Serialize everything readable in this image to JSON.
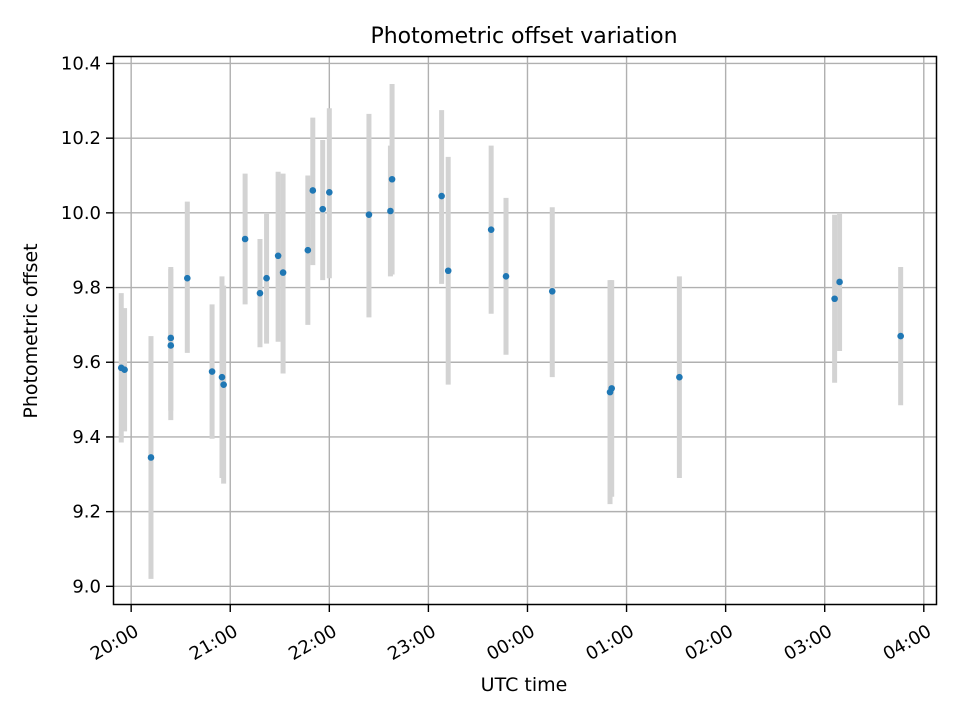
{
  "chart_data": {
    "type": "scatter",
    "title": "Photometric offset variation",
    "xlabel": "UTC time",
    "ylabel": "Photometric offset",
    "x_unit": "UTC time (hh:mm)",
    "x_range": [
      "19:49",
      "04:08"
    ],
    "ylim": [
      8.95,
      10.42
    ],
    "grid": true,
    "x_ticks": [
      "20:00",
      "21:00",
      "22:00",
      "23:00",
      "00:00",
      "01:00",
      "02:00",
      "03:00",
      "04:00"
    ],
    "y_ticks": [
      "9.0",
      "9.2",
      "9.4",
      "9.6",
      "9.8",
      "10.0",
      "10.2",
      "10.4"
    ],
    "point_color": "#1f77b4",
    "errorbar_color": "#d3d3d3",
    "points": [
      {
        "x": "19:54",
        "y": 9.585,
        "low": 9.385,
        "high": 9.785
      },
      {
        "x": "19:56",
        "y": 9.58,
        "low": 9.415,
        "high": 9.745
      },
      {
        "x": "20:12",
        "y": 9.345,
        "low": 9.02,
        "high": 9.67
      },
      {
        "x": "20:24",
        "y": 9.645,
        "low": 9.445,
        "high": 9.85
      },
      {
        "x": "20:24",
        "y": 9.665,
        "low": 9.47,
        "high": 9.855
      },
      {
        "x": "20:34",
        "y": 9.825,
        "low": 9.625,
        "high": 10.03
      },
      {
        "x": "20:49",
        "y": 9.575,
        "low": 9.395,
        "high": 9.755
      },
      {
        "x": "20:55",
        "y": 9.56,
        "low": 9.29,
        "high": 9.83
      },
      {
        "x": "20:56",
        "y": 9.54,
        "low": 9.275,
        "high": 9.805
      },
      {
        "x": "21:09",
        "y": 9.93,
        "low": 9.755,
        "high": 10.105
      },
      {
        "x": "21:18",
        "y": 9.785,
        "low": 9.64,
        "high": 9.93
      },
      {
        "x": "21:22",
        "y": 9.825,
        "low": 9.65,
        "high": 10.0
      },
      {
        "x": "21:29",
        "y": 9.885,
        "low": 9.655,
        "high": 10.11
      },
      {
        "x": "21:32",
        "y": 9.84,
        "low": 9.57,
        "high": 10.105
      },
      {
        "x": "21:47",
        "y": 9.9,
        "low": 9.7,
        "high": 10.1
      },
      {
        "x": "21:50",
        "y": 10.06,
        "low": 9.86,
        "high": 10.255
      },
      {
        "x": "21:56",
        "y": 10.01,
        "low": 9.82,
        "high": 10.195
      },
      {
        "x": "22:00",
        "y": 10.055,
        "low": 9.825,
        "high": 10.28
      },
      {
        "x": "22:24",
        "y": 9.995,
        "low": 9.72,
        "high": 10.265
      },
      {
        "x": "22:37",
        "y": 10.005,
        "low": 9.83,
        "high": 10.18
      },
      {
        "x": "22:38",
        "y": 10.09,
        "low": 9.835,
        "high": 10.345
      },
      {
        "x": "23:08",
        "y": 10.045,
        "low": 9.81,
        "high": 10.275
      },
      {
        "x": "23:12",
        "y": 9.845,
        "low": 9.54,
        "high": 10.15
      },
      {
        "x": "23:38",
        "y": 9.955,
        "low": 9.73,
        "high": 10.18
      },
      {
        "x": "23:47",
        "y": 9.83,
        "low": 9.62,
        "high": 10.04
      },
      {
        "x": "00:15",
        "y": 9.79,
        "low": 9.56,
        "high": 10.015
      },
      {
        "x": "00:50",
        "y": 9.52,
        "low": 9.22,
        "high": 9.82
      },
      {
        "x": "00:51",
        "y": 9.53,
        "low": 9.24,
        "high": 9.82
      },
      {
        "x": "01:32",
        "y": 9.56,
        "low": 9.29,
        "high": 9.83
      },
      {
        "x": "03:06",
        "y": 9.77,
        "low": 9.545,
        "high": 9.995
      },
      {
        "x": "03:09",
        "y": 9.815,
        "low": 9.63,
        "high": 10.0
      },
      {
        "x": "03:46",
        "y": 9.67,
        "low": 9.485,
        "high": 9.855
      }
    ]
  }
}
